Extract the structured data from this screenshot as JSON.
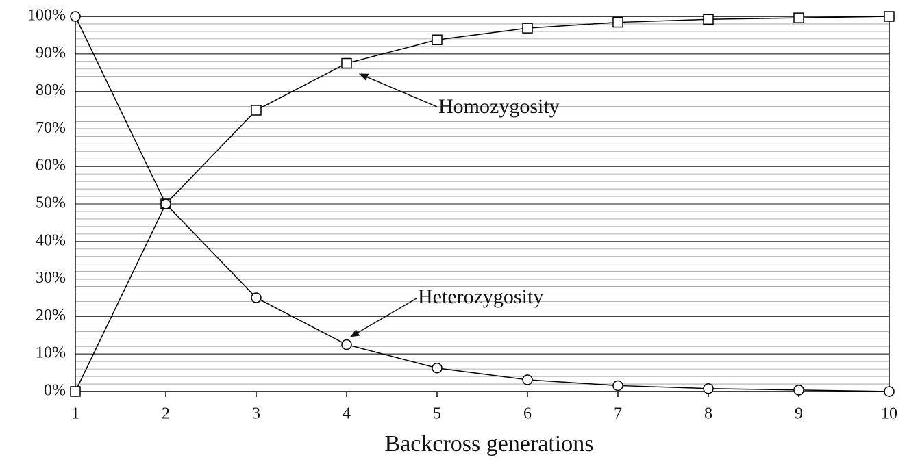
{
  "chart_data": {
    "type": "line",
    "x_label": "Backcross generations",
    "x": [
      1,
      2,
      3,
      4,
      5,
      6,
      7,
      8,
      9,
      10
    ],
    "xlim": [
      1,
      10
    ],
    "xticks": [
      1,
      2,
      3,
      4,
      5,
      6,
      7,
      8,
      9,
      10
    ],
    "ylim": [
      0,
      100
    ],
    "yticks": [
      {
        "value": 0,
        "label": "0%"
      },
      {
        "value": 10,
        "label": "10%"
      },
      {
        "value": 20,
        "label": "20%"
      },
      {
        "value": 30,
        "label": "30%"
      },
      {
        "value": 40,
        "label": "40%"
      },
      {
        "value": 50,
        "label": "50%"
      },
      {
        "value": 60,
        "label": "60%"
      },
      {
        "value": 70,
        "label": "70%"
      },
      {
        "value": 80,
        "label": "80%"
      },
      {
        "value": 90,
        "label": "90%"
      },
      {
        "value": 100,
        "label": "100%"
      }
    ],
    "grid": true,
    "series": [
      {
        "name": "Homozygosity",
        "color": "#000000",
        "marker": "square",
        "values": [
          0,
          50,
          75,
          87.5,
          93.75,
          96.875,
          98.4375,
          99.21875,
          99.609375,
          100
        ]
      },
      {
        "name": "Heterozygosity",
        "color": "#000000",
        "marker": "circle",
        "values": [
          100,
          50,
          25,
          12.5,
          6.25,
          3.125,
          1.5625,
          0.78125,
          0.390625,
          0
        ]
      }
    ]
  }
}
